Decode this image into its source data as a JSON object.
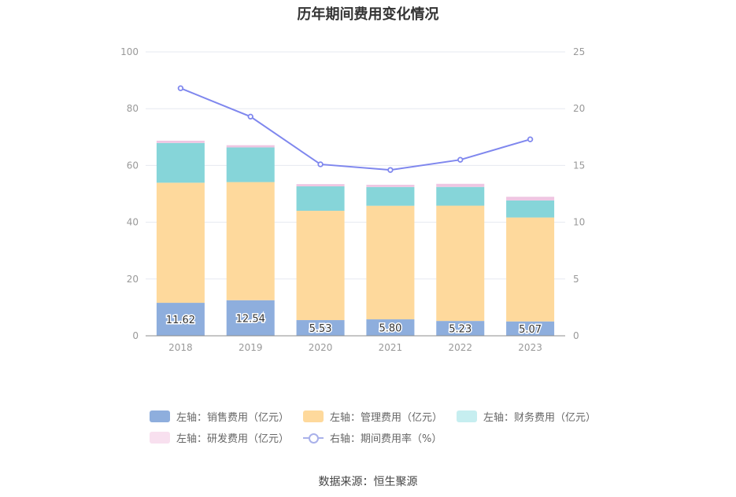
{
  "chart_data": {
    "type": "bar",
    "title": "历年期间费用变化情况",
    "categories": [
      "2018",
      "2019",
      "2020",
      "2021",
      "2022",
      "2023"
    ],
    "y_left": {
      "ylim": [
        0,
        100
      ],
      "ticks": [
        "0",
        "20",
        "40",
        "60",
        "80",
        "100"
      ]
    },
    "y_right": {
      "ylim": [
        0,
        25
      ],
      "ticks": [
        "0",
        "5",
        "10",
        "15",
        "20",
        "25"
      ]
    },
    "series": [
      {
        "name": "左轴：销售费用（亿元）",
        "axis": "left",
        "stacked": true,
        "color": "#8eaedd",
        "values": [
          11.62,
          12.54,
          5.53,
          5.8,
          5.23,
          5.07
        ],
        "labels": [
          "11.62",
          "12.54",
          "5.53",
          "5.80",
          "5.23",
          "5.07"
        ]
      },
      {
        "name": "左轴：管理费用（亿元）",
        "axis": "left",
        "stacked": true,
        "color": "#fed99c",
        "values": [
          42.3,
          41.6,
          38.5,
          40.0,
          40.6,
          36.6
        ]
      },
      {
        "name": "左轴：财务费用（亿元）",
        "axis": "left",
        "stacked": true,
        "color": "#86d5d9",
        "values": [
          14.0,
          12.2,
          8.6,
          6.6,
          6.6,
          6.0
        ]
      },
      {
        "name": "左轴：研发费用（亿元）",
        "axis": "left",
        "stacked": true,
        "color": "#efc6e2",
        "values": [
          0.8,
          0.8,
          0.8,
          0.8,
          1.1,
          1.3
        ]
      },
      {
        "name": "右轴：期间费用率（%）",
        "axis": "right",
        "type": "line",
        "color": "#7f87ee",
        "values": [
          21.8,
          19.3,
          15.1,
          14.6,
          15.5,
          17.3
        ]
      }
    ],
    "grid": true,
    "legend_position": "bottom"
  },
  "source_text": "数据来源：恒生聚源"
}
